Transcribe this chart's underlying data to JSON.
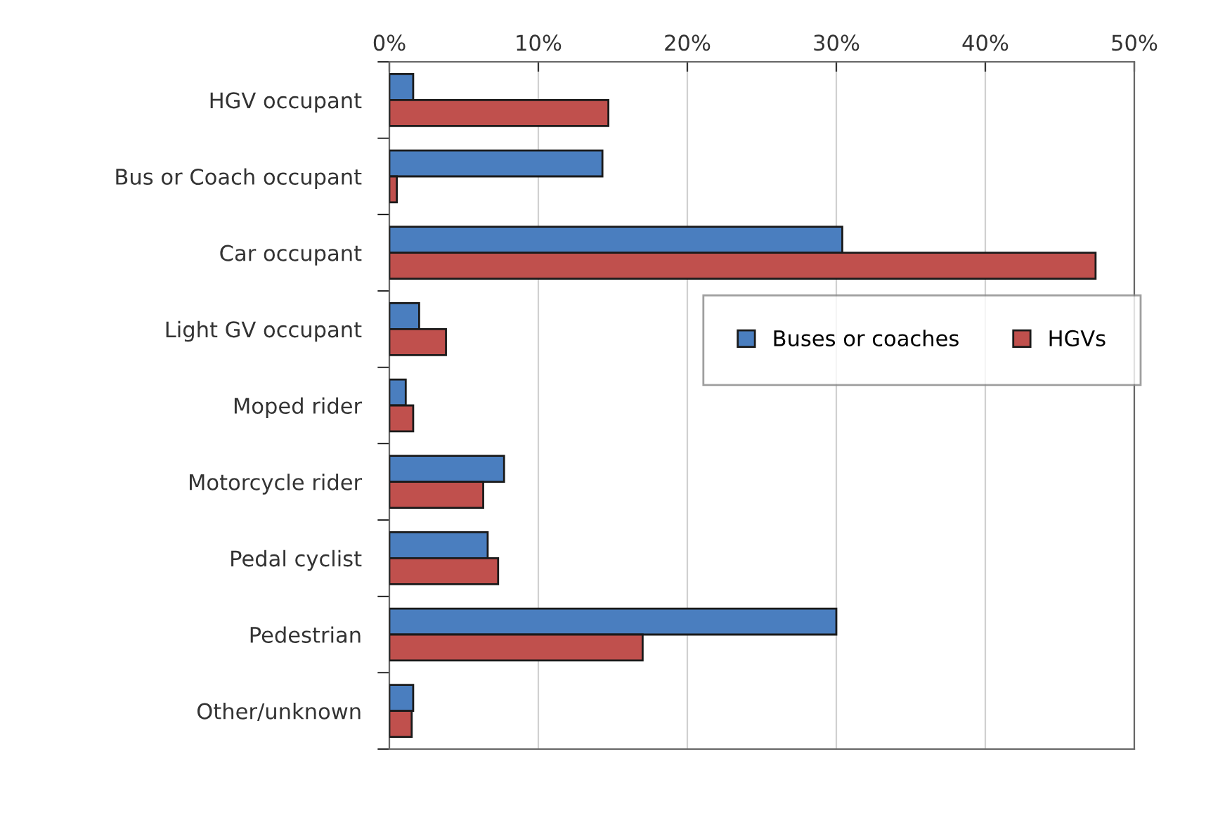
{
  "chart_data": {
    "type": "bar",
    "orientation": "horizontal",
    "categories": [
      "HGV occupant",
      "Bus or Coach occupant",
      "Car occupant",
      "Light GV occupant",
      "Moped rider",
      "Motorcycle rider",
      "Pedal cyclist",
      "Pedestrian",
      "Other/unknown"
    ],
    "series": [
      {
        "name": "Buses or coaches",
        "color": "#4a7ebf",
        "values": [
          1.6,
          14.3,
          30.4,
          2.0,
          1.1,
          7.7,
          6.6,
          30.0,
          1.6
        ]
      },
      {
        "name": "HGVs",
        "color": "#c0504d",
        "values": [
          14.7,
          0.5,
          47.4,
          3.8,
          1.6,
          6.3,
          7.3,
          17.0,
          1.5
        ]
      }
    ],
    "xlim": [
      0,
      50
    ],
    "xticks": [
      {
        "value": 0,
        "label": "0%"
      },
      {
        "value": 10,
        "label": "10%"
      },
      {
        "value": 20,
        "label": "20%"
      },
      {
        "value": 30,
        "label": "30%"
      },
      {
        "value": 40,
        "label": "40%"
      },
      {
        "value": 50,
        "label": "50%"
      }
    ],
    "grid": "x",
    "legend": "right"
  }
}
